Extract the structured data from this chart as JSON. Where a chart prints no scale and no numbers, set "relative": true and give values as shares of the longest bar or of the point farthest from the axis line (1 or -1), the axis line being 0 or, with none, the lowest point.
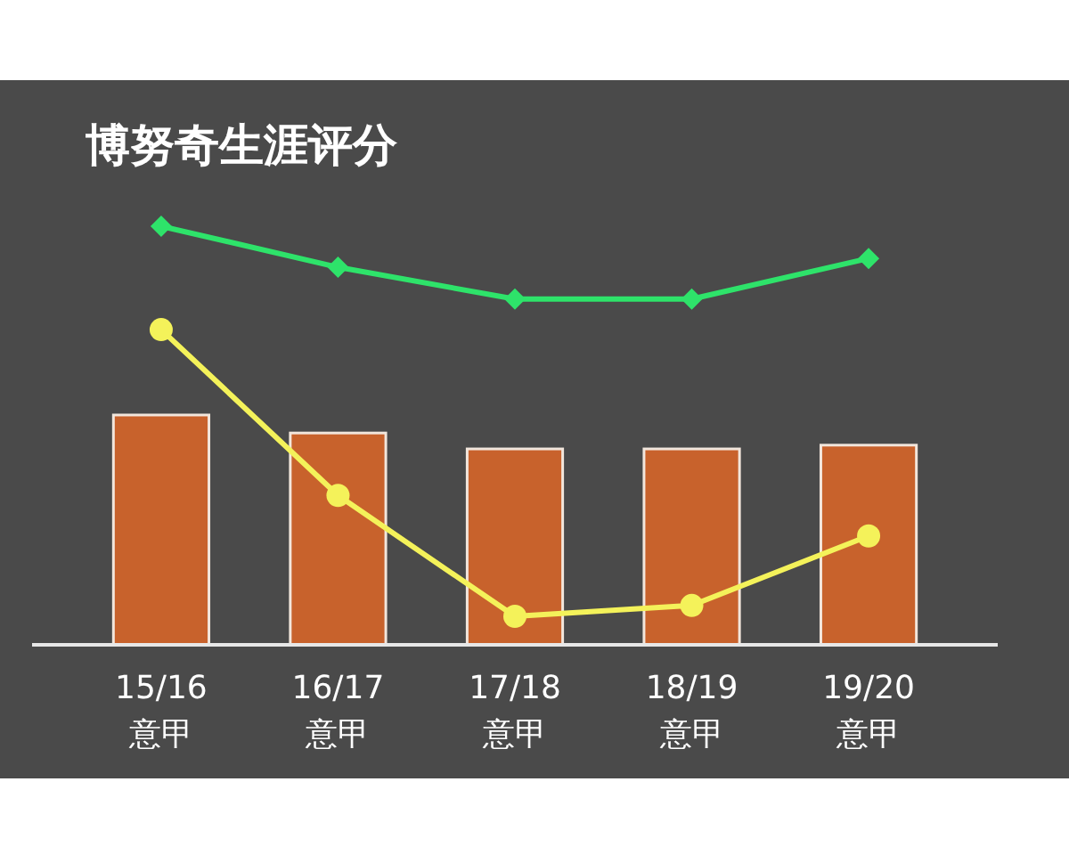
{
  "chart_data": {
    "type": "bar",
    "title": "博努奇生涯评分",
    "relative": true,
    "categories": [
      "15/16\n意甲",
      "16/17\n意甲",
      "17/18\n意甲",
      "18/19\n意甲",
      "19/20\n意甲"
    ],
    "series": [
      {
        "color": "#c8622c",
        "values": [
          0.549,
          0.506,
          0.468,
          0.468,
          0.477
        ]
      },
      {
        "type": "line",
        "color": "#2ee36a",
        "marker": "diamond",
        "values": [
          1,
          0.902,
          0.826,
          0.826,
          0.923
        ]
      },
      {
        "type": "line",
        "color": "#f4f25a",
        "marker": "circle",
        "values": [
          0.753,
          0.357,
          0.068,
          0.094,
          0.26
        ]
      }
    ]
  }
}
